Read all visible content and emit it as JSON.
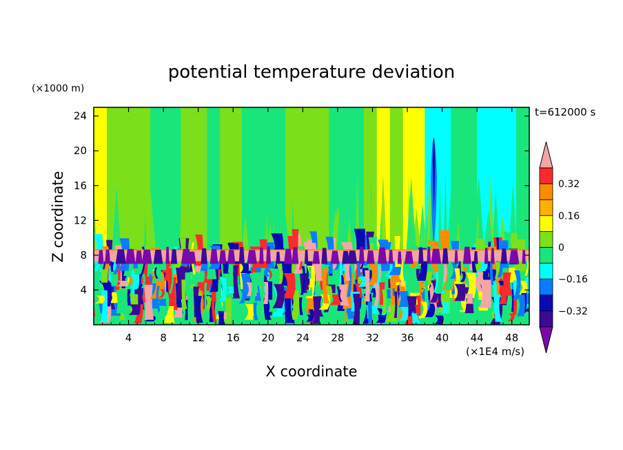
{
  "chart_data": {
    "type": "heatmap",
    "title": "potential temperature deviation",
    "time_label": "t=612000 s",
    "xlabel": "X coordinate",
    "ylabel": "Z coordinate",
    "x_unit": "(×1E4 m/s)",
    "y_unit": "(×1000 m)",
    "xlim": [
      0,
      50
    ],
    "ylim": [
      0,
      25
    ],
    "x_ticks": [
      "4",
      "8",
      "12",
      "16",
      "20",
      "24",
      "28",
      "32",
      "36",
      "40",
      "44",
      "48"
    ],
    "y_ticks": [
      "4",
      "8",
      "12",
      "16",
      "20",
      "24"
    ],
    "colorbar": {
      "labels": [
        "0.32",
        "0.16",
        "0",
        "−0.16",
        "−0.32"
      ],
      "label_values": [
        0.32,
        0.16,
        0,
        -0.16,
        -0.32
      ],
      "levels": [
        0.4,
        0.32,
        0.24,
        0.16,
        0.08,
        0,
        -0.08,
        -0.16,
        -0.24,
        -0.32,
        -0.4
      ],
      "colors": [
        "#f4a6a6",
        "#ff2a2a",
        "#ff8c00",
        "#ffb000",
        "#ffff00",
        "#7be01a",
        "#19e67a",
        "#00ffff",
        "#0a7cff",
        "#0a0ab4",
        "#3c0a96",
        "#7a0aa8"
      ]
    },
    "upper_layer_bands": [
      {
        "x": [
          0,
          1.5
        ],
        "fill": "#ffff00"
      },
      {
        "x": [
          1.5,
          6.5
        ],
        "fill": "#7be01a"
      },
      {
        "x": [
          6.5,
          10
        ],
        "fill": "#19e67a"
      },
      {
        "x": [
          10,
          13
        ],
        "fill": "#7be01a"
      },
      {
        "x": [
          13,
          14.5
        ],
        "fill": "#19e67a"
      },
      {
        "x": [
          14.5,
          17
        ],
        "fill": "#7be01a"
      },
      {
        "x": [
          17,
          22
        ],
        "fill": "#19e67a"
      },
      {
        "x": [
          22,
          27
        ],
        "fill": "#7be01a"
      },
      {
        "x": [
          27,
          31
        ],
        "fill": "#19e67a"
      },
      {
        "x": [
          31,
          32.5
        ],
        "fill": "#7be01a"
      },
      {
        "x": [
          32.5,
          34
        ],
        "fill": "#ffff00"
      },
      {
        "x": [
          34,
          35.5
        ],
        "fill": "#7be01a"
      },
      {
        "x": [
          35.5,
          38
        ],
        "fill": "#ffff00"
      },
      {
        "x": [
          38,
          41
        ],
        "fill": "#00ffff"
      },
      {
        "x": [
          41,
          44
        ],
        "fill": "#19e67a"
      },
      {
        "x": [
          44,
          48.5
        ],
        "fill": "#00ffff"
      },
      {
        "x": [
          48.5,
          50
        ],
        "fill": "#19e67a"
      }
    ],
    "inversion_layer": {
      "z_bottom": 7.3,
      "z_top": 8.6,
      "fill": "#f4a6a6"
    }
  }
}
